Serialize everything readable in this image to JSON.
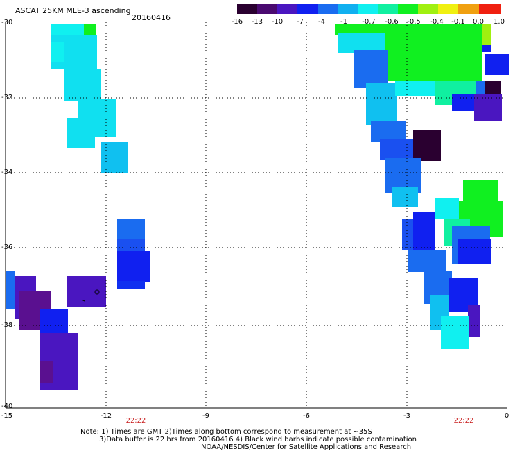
{
  "header": {
    "title": "ASCAT 25KM MLE-3 ascending",
    "date": "20160416"
  },
  "colorbar": {
    "labels": [
      "-16",
      "-13",
      "-10",
      "-7",
      "-4",
      "-1",
      "-0.7",
      "-0.6",
      "-0.5",
      "-0.4",
      "-0.1",
      "0.0",
      "1.0"
    ],
    "colors": [
      "#2a0030",
      "#4a0a70",
      "#4a16c0",
      "#1020f0",
      "#1a6cf0",
      "#10b0f0",
      "#10f0f0",
      "#10f0a0",
      "#10f020",
      "#a0f010",
      "#f0f010",
      "#f0a010",
      "#f02010"
    ]
  },
  "axes": {
    "lat_ticks": [
      "-30",
      "-32",
      "-34",
      "-36",
      "-38",
      "-40"
    ],
    "lon_ticks": [
      "-15",
      "-12",
      "-9",
      "-6",
      "-3",
      "0"
    ]
  },
  "pass_times": [
    "22:22",
    "22:22"
  ],
  "notes": {
    "line1": "Note: 1) Times are GMT 2)Times along bottom correspond to measurement at ~35S",
    "line2": "3)Data buffer is 22 hrs from 20160416 4) Black wind barbs indicate possible contamination",
    "line3": "NOAA/NESDIS/Center for Satellite Applications and Research"
  }
}
